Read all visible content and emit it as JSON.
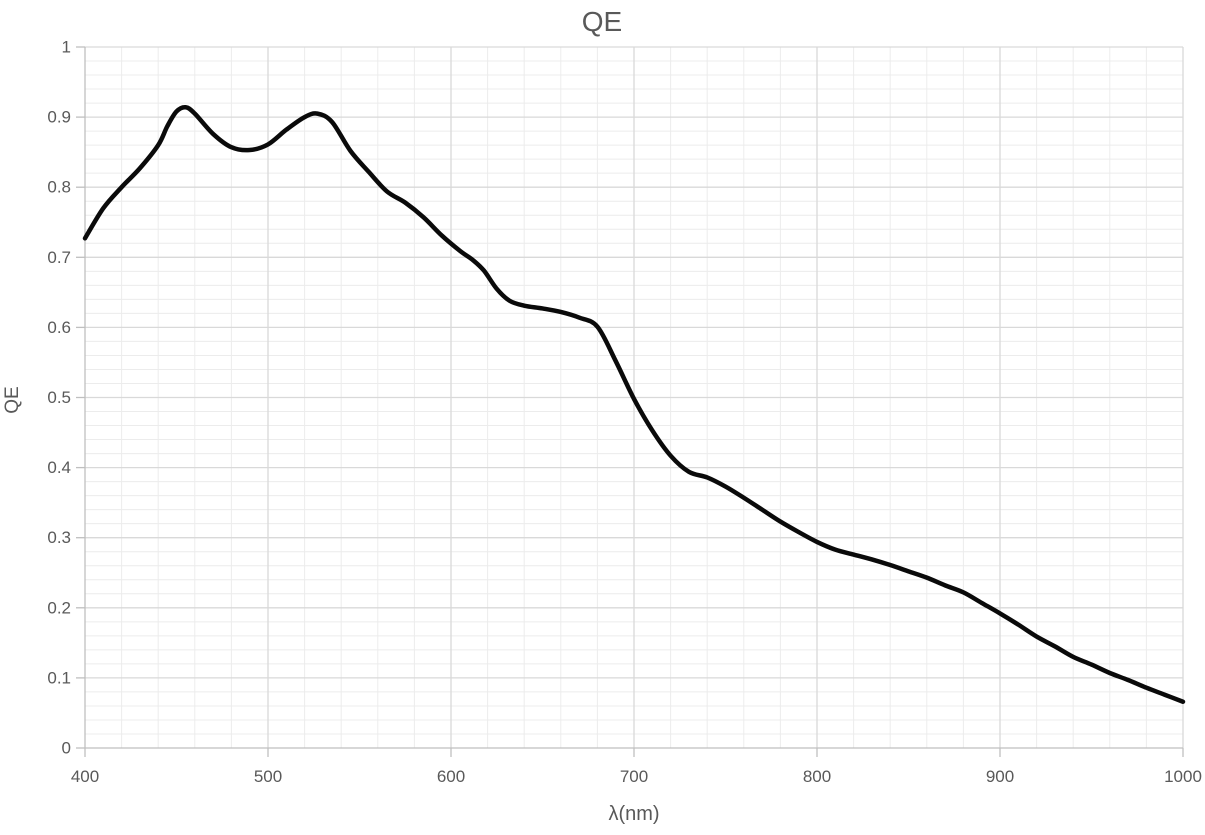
{
  "chart_data": {
    "type": "line",
    "title": "QE",
    "xlabel": "λ(nm)",
    "ylabel": "QE",
    "xlim": [
      400,
      1000
    ],
    "ylim": [
      0,
      1
    ],
    "x_major_ticks": [
      400,
      500,
      600,
      700,
      800,
      900,
      1000
    ],
    "x_tick_labels": [
      "400",
      "500",
      "600",
      "700",
      "800",
      "900",
      "1000"
    ],
    "y_major_ticks": [
      0,
      0.1,
      0.2,
      0.3,
      0.4,
      0.5,
      0.6,
      0.7,
      0.8,
      0.9,
      1
    ],
    "y_tick_labels": [
      "0",
      "0.1",
      "0.2",
      "0.3",
      "0.4",
      "0.5",
      "0.6",
      "0.7",
      "0.8",
      "0.9",
      "1"
    ],
    "x_minor_step": 20,
    "y_minor_step": 0.02,
    "grid": "major+minor",
    "legend": "none",
    "series": [
      {
        "name": "QE",
        "x": [
          400,
          410,
          420,
          430,
          440,
          445,
          450,
          455,
          460,
          470,
          480,
          490,
          500,
          510,
          520,
          527,
          535,
          545,
          555,
          565,
          575,
          585,
          595,
          605,
          612,
          618,
          625,
          632,
          640,
          650,
          660,
          670,
          680,
          690,
          700,
          710,
          720,
          730,
          740,
          750,
          760,
          770,
          780,
          790,
          800,
          810,
          820,
          830,
          840,
          850,
          860,
          870,
          880,
          890,
          900,
          910,
          920,
          930,
          940,
          950,
          960,
          970,
          980,
          990,
          1000
        ],
        "values": [
          0.727,
          0.77,
          0.8,
          0.827,
          0.86,
          0.887,
          0.908,
          0.914,
          0.905,
          0.876,
          0.857,
          0.853,
          0.861,
          0.882,
          0.9,
          0.905,
          0.893,
          0.852,
          0.822,
          0.794,
          0.778,
          0.757,
          0.731,
          0.709,
          0.696,
          0.681,
          0.655,
          0.638,
          0.631,
          0.627,
          0.622,
          0.614,
          0.601,
          0.552,
          0.498,
          0.453,
          0.417,
          0.394,
          0.386,
          0.373,
          0.357,
          0.34,
          0.323,
          0.308,
          0.294,
          0.283,
          0.276,
          0.269,
          0.261,
          0.252,
          0.243,
          0.232,
          0.222,
          0.207,
          0.192,
          0.176,
          0.159,
          0.145,
          0.13,
          0.119,
          0.107,
          0.097,
          0.086,
          0.076,
          0.066
        ]
      }
    ],
    "colors": {
      "line": "#0a0a0a",
      "text": "#595959",
      "major_grid": "#d9d9d9",
      "minor_grid": "#ececec",
      "axis": "#bfbfbf",
      "background": "#ffffff"
    }
  }
}
